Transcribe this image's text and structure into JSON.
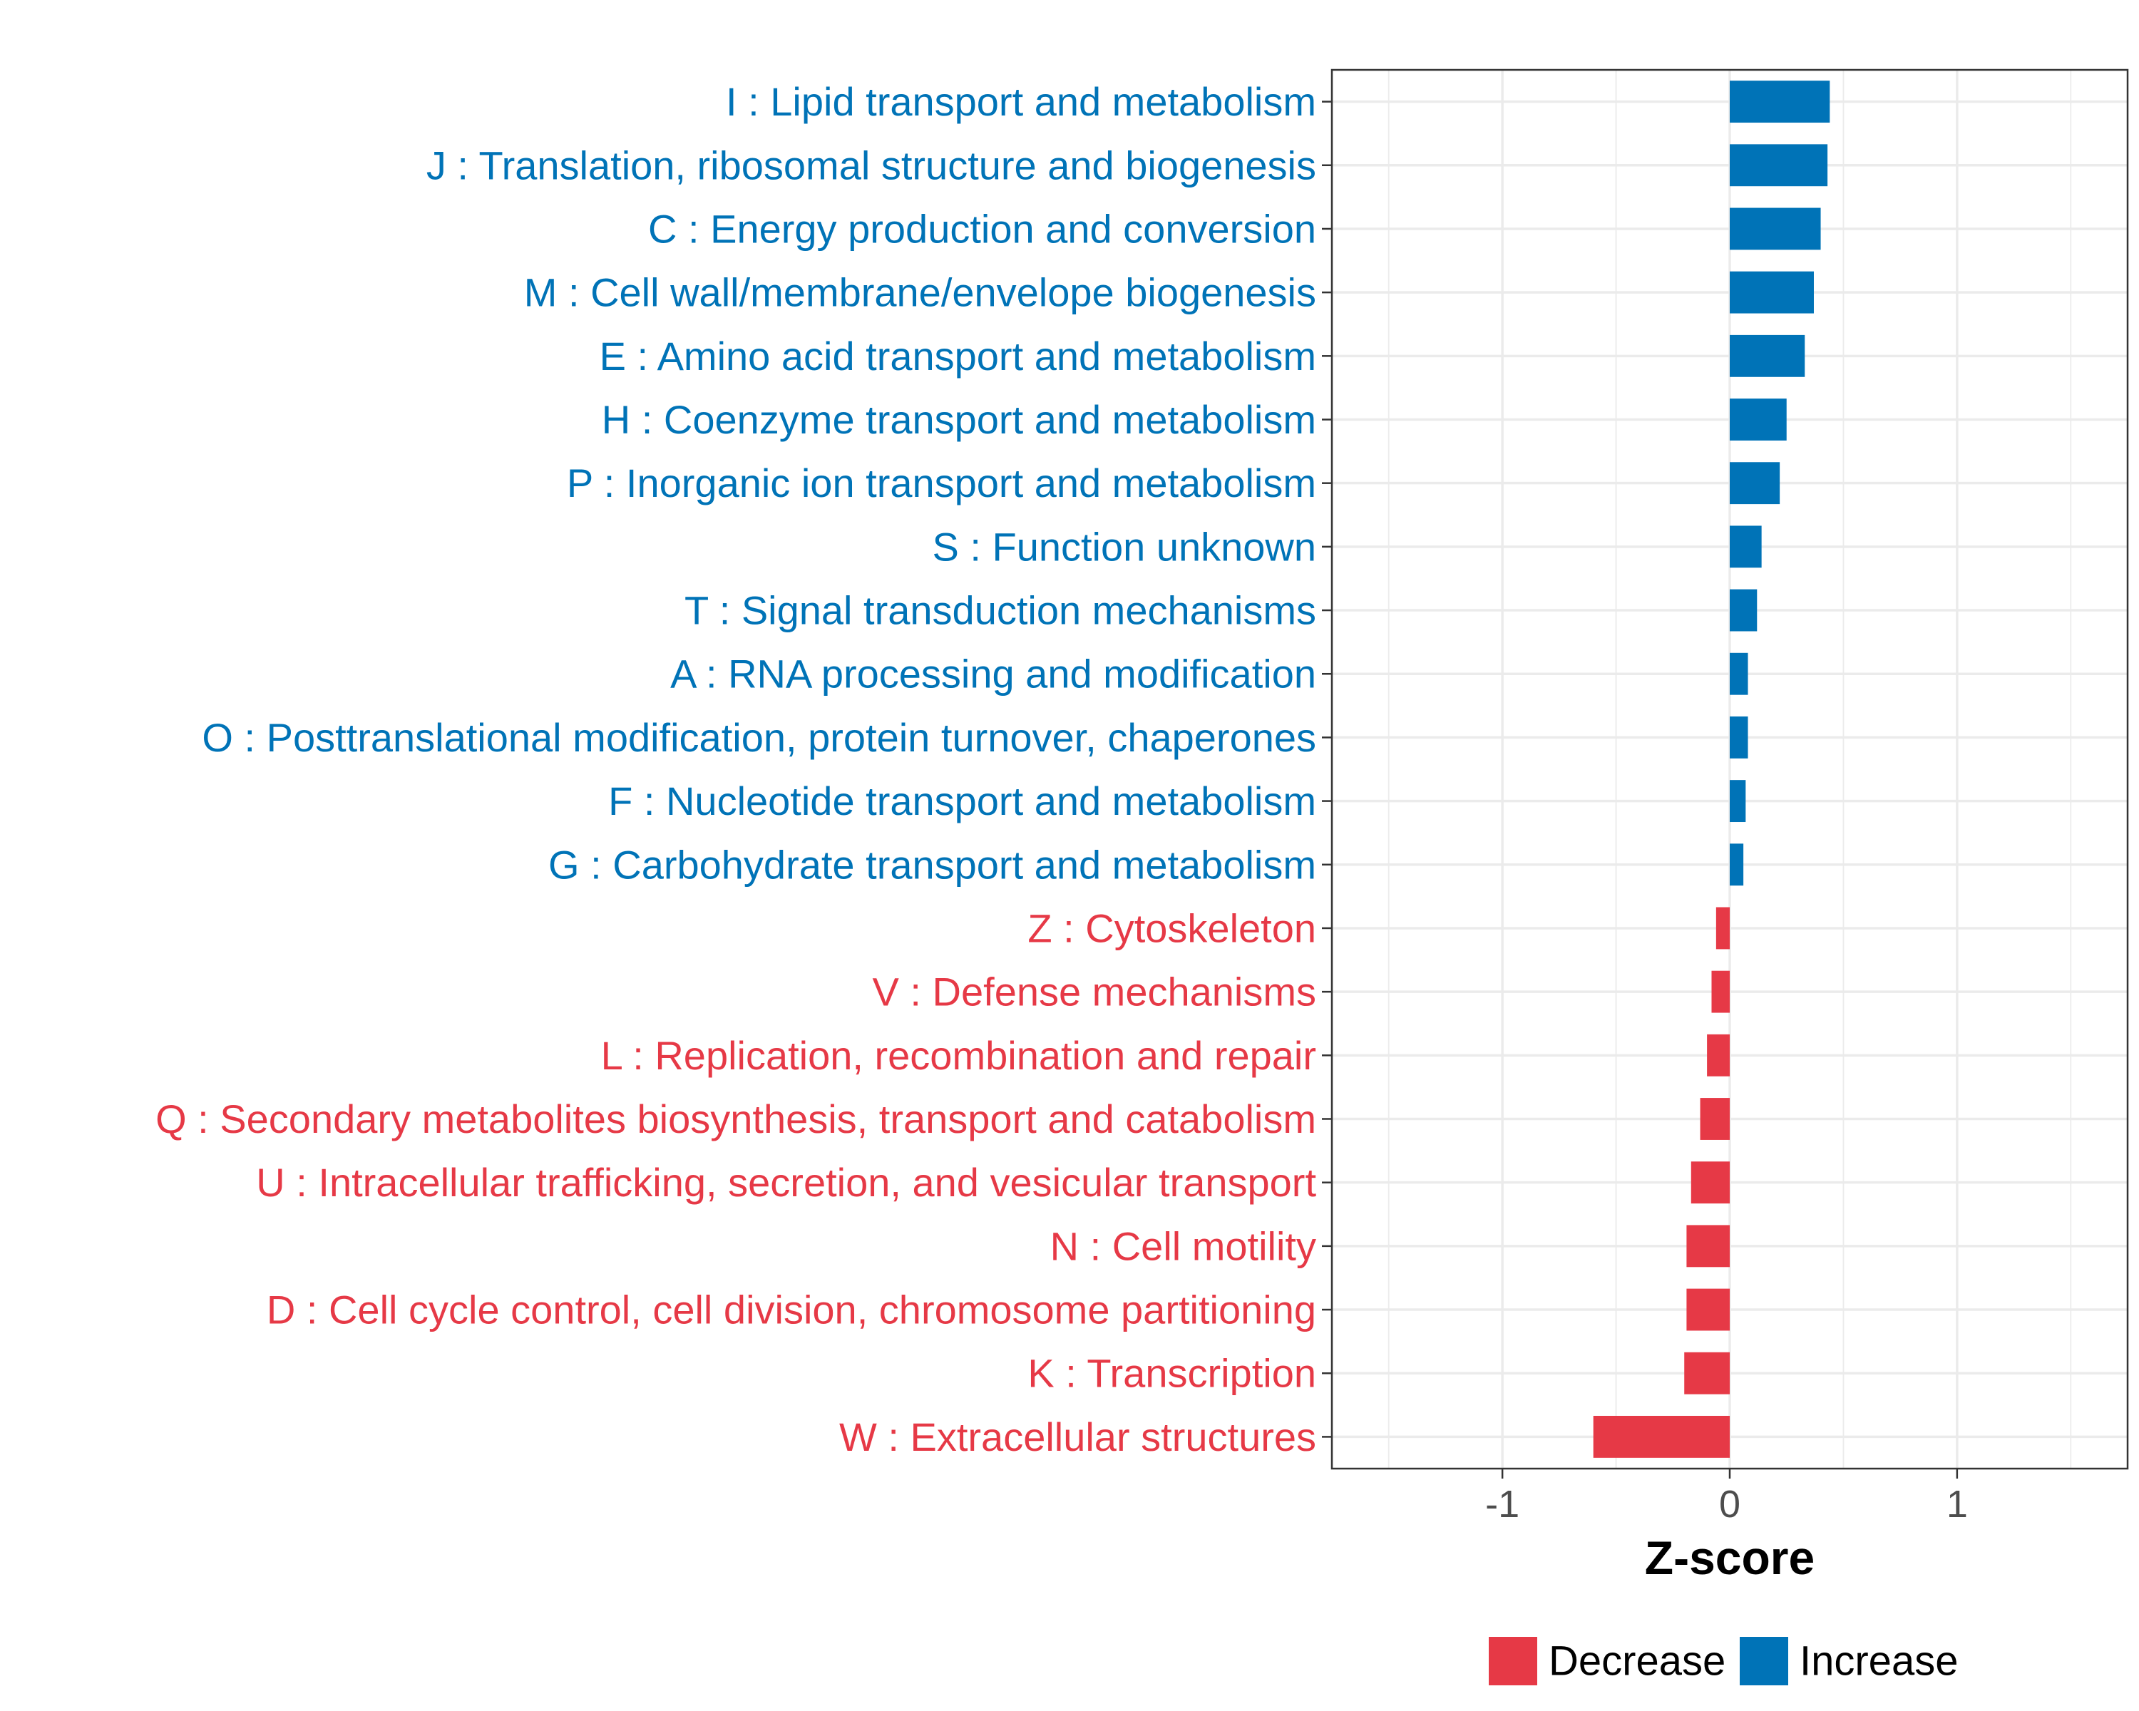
{
  "chart_data": {
    "type": "bar",
    "orientation": "horizontal",
    "title": "",
    "xlabel": "Z-score",
    "ylabel": "",
    "xlim": [
      -1.75,
      1.75
    ],
    "xticks": [
      -1,
      0,
      1
    ],
    "xtick_labels": [
      "-1",
      "0",
      "1"
    ],
    "grid": true,
    "legend_position": "bottom",
    "categories": [
      "I : Lipid transport and metabolism",
      "J : Translation, ribosomal structure and biogenesis",
      "C : Energy production and conversion",
      "M : Cell wall/membrane/envelope biogenesis",
      "E : Amino acid transport and metabolism",
      "H : Coenzyme transport and metabolism",
      "P : Inorganic ion transport and metabolism",
      "S : Function unknown",
      "T : Signal transduction mechanisms",
      "A : RNA processing and modification",
      "O : Posttranslational modification, protein turnover, chaperones",
      "F : Nucleotide transport and metabolism",
      "G : Carbohydrate transport and metabolism",
      "Z : Cytoskeleton",
      "V : Defense mechanisms",
      "L : Replication, recombination and repair",
      "Q : Secondary metabolites biosynthesis, transport and catabolism",
      "U : Intracellular trafficking, secretion, and vesicular transport",
      "N : Cell motility",
      "D : Cell cycle control, cell division, chromosome partitioning",
      "K : Transcription",
      "W : Extracellular structures"
    ],
    "values": [
      0.44,
      0.43,
      0.4,
      0.37,
      0.33,
      0.25,
      0.22,
      0.14,
      0.12,
      0.08,
      0.08,
      0.07,
      0.06,
      -0.06,
      -0.08,
      -0.1,
      -0.13,
      -0.17,
      -0.19,
      -0.19,
      -0.2,
      -0.6
    ],
    "groups": [
      "Increase",
      "Increase",
      "Increase",
      "Increase",
      "Increase",
      "Increase",
      "Increase",
      "Increase",
      "Increase",
      "Increase",
      "Increase",
      "Increase",
      "Increase",
      "Decrease",
      "Decrease",
      "Decrease",
      "Decrease",
      "Decrease",
      "Decrease",
      "Decrease",
      "Decrease",
      "Decrease"
    ],
    "legend": [
      {
        "label": "Decrease",
        "color": "#e63946"
      },
      {
        "label": "Increase",
        "color": "#0073b7"
      }
    ]
  }
}
